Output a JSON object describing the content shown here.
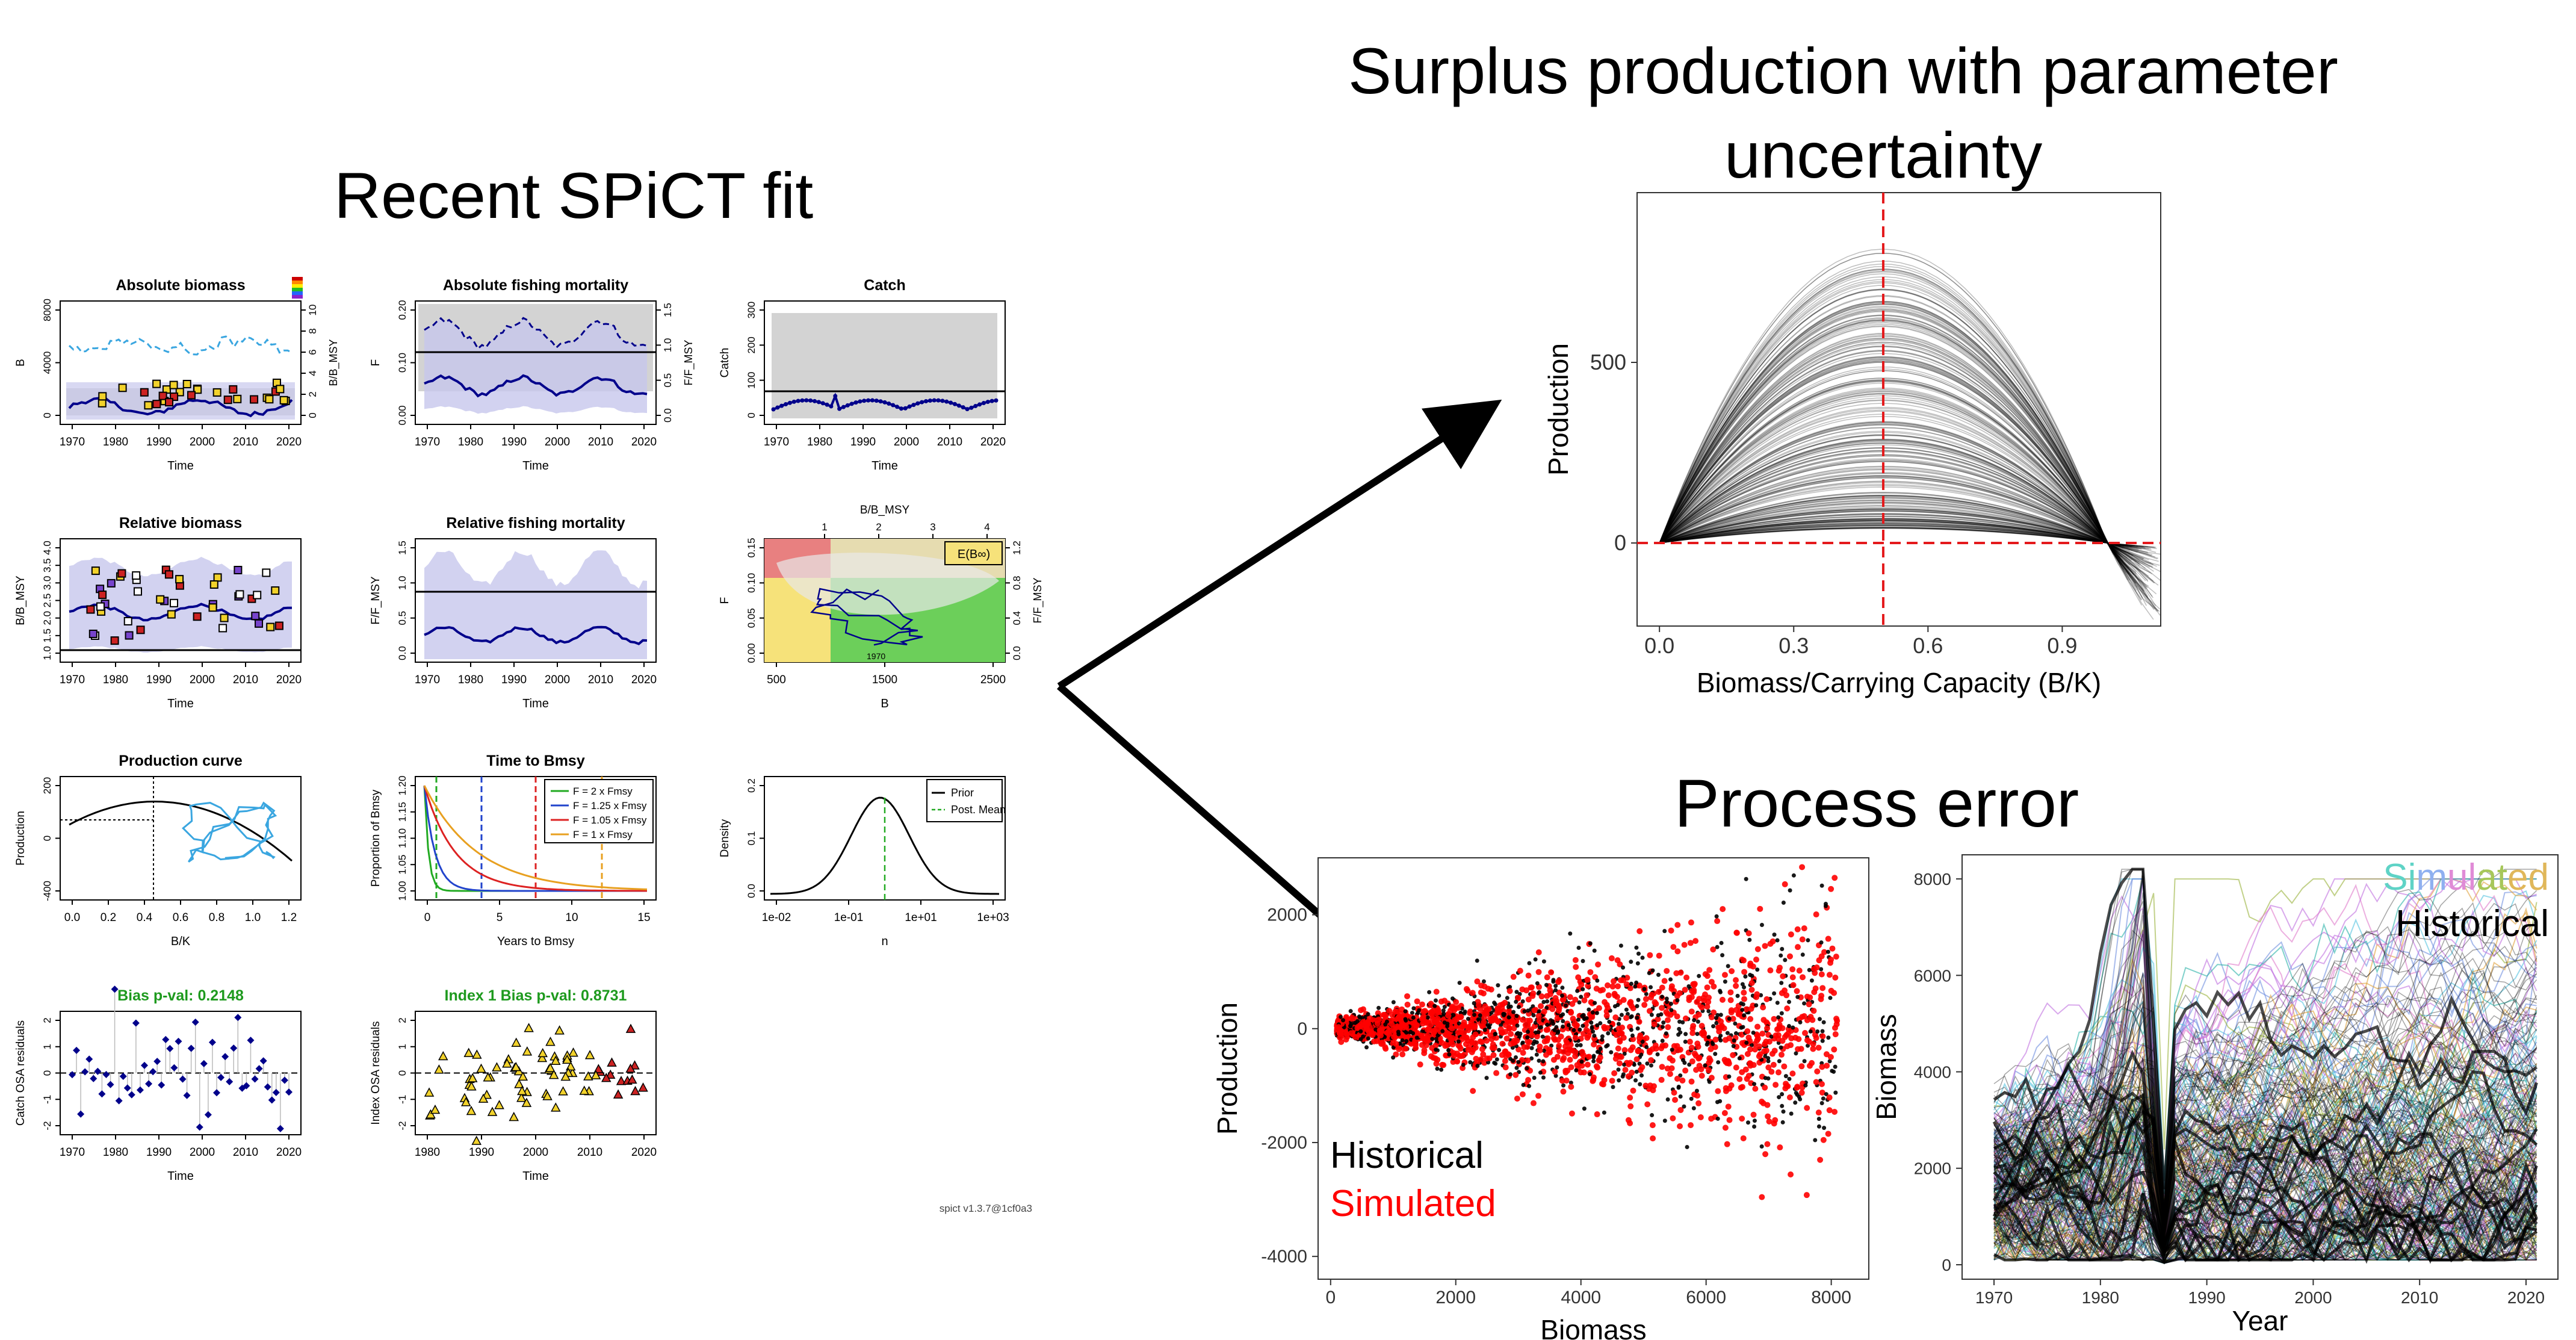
{
  "headings": {
    "left": "Recent SPiCT fit",
    "surplus_line1": "Surplus production with parameter",
    "surplus_line2": "uncertainty",
    "process": "Process error"
  },
  "colors": {
    "historical": "#000000",
    "simulated": "#ff0000",
    "ci_fill": "#c7c7ec",
    "blue": "#00008b",
    "light_blue": "#3aa6e0",
    "green_text": "#1e9a1e",
    "grey_fill": "#d3d3d3",
    "red_dashed": "#e41a1c"
  },
  "spict": {
    "version": "spict v1.3.7@1cf0a3",
    "panels": [
      {
        "title": "Absolute biomass",
        "xlabel": "Time",
        "ylabel": "B",
        "xticks": [
          "1970",
          "1980",
          "1990",
          "2000",
          "2010",
          "2020"
        ],
        "yticks": [
          "0",
          "4000",
          "8000"
        ],
        "y2ticks": [
          "0",
          "2",
          "4",
          "6",
          "8",
          "10"
        ],
        "y2label": "B/B_MSY"
      },
      {
        "title": "Absolute fishing mortality",
        "xlabel": "Time",
        "ylabel": "F",
        "xticks": [
          "1970",
          "1980",
          "1990",
          "2000",
          "2010",
          "2020"
        ],
        "yticks": [
          "0.00",
          "0.10",
          "0.20"
        ],
        "y2ticks": [
          "0.0",
          "0.5",
          "1.0",
          "1.5"
        ],
        "y2label": "F/F_MSY"
      },
      {
        "title": "Catch",
        "xlabel": "Time",
        "ylabel": "Catch",
        "xticks": [
          "1970",
          "1980",
          "1990",
          "2000",
          "2010",
          "2020"
        ],
        "yticks": [
          "0",
          "100",
          "200",
          "300"
        ]
      },
      {
        "title": "Relative biomass",
        "xlabel": "Time",
        "ylabel": "B/B_MSY",
        "xticks": [
          "1970",
          "1980",
          "1990",
          "2000",
          "2010",
          "2020"
        ],
        "yticks": [
          "1.0",
          "1.5",
          "2.0",
          "2.5",
          "3.0",
          "3.5",
          "4.0"
        ]
      },
      {
        "title": "Relative fishing mortality",
        "xlabel": "Time",
        "ylabel": "F/F_MSY",
        "xticks": [
          "1970",
          "1980",
          "1990",
          "2000",
          "2010",
          "2020"
        ],
        "yticks": [
          "0.0",
          "0.5",
          "1.0",
          "1.5"
        ]
      },
      {
        "title": "",
        "xlabel": "B",
        "ylabel": "F",
        "toplabel": "B/B_MSY",
        "xticks": [
          "500",
          "1500",
          "2500"
        ],
        "yticks": [
          "0.00",
          "0.05",
          "0.10",
          "0.15"
        ],
        "topticks": [
          "1",
          "2",
          "3",
          "4"
        ],
        "y2ticks": [
          "0.0",
          "0.4",
          "0.8",
          "1.2"
        ],
        "y2label": "F/F_MSY",
        "legend": "E(B∞)",
        "start_year": "1970"
      },
      {
        "title": "Production curve",
        "xlabel": "B/K",
        "ylabel": "Production",
        "xticks": [
          "0.0",
          "0.2",
          "0.4",
          "0.6",
          "0.8",
          "1.0",
          "1.2"
        ],
        "yticks": [
          "-400",
          "0",
          "200"
        ]
      },
      {
        "title": "Time to Bmsy",
        "xlabel": "Years to Bmsy",
        "ylabel": "Proportion of Bmsy",
        "xticks": [
          "0",
          "5",
          "10",
          "15"
        ],
        "yticks": [
          "1.00",
          "1.05",
          "1.10",
          "1.15",
          "1.20"
        ],
        "legend": [
          "F = 2 x Fmsy",
          "F = 1.25 x Fmsy",
          "F = 1.05 x Fmsy",
          "F = 1 x Fmsy"
        ]
      },
      {
        "title": "",
        "xlabel": "n",
        "ylabel": "Density",
        "xticks": [
          "1e-02",
          "1e-01",
          "1e+01",
          "1e+03"
        ],
        "yticks": [
          "0.0",
          "0.1",
          "0.2"
        ],
        "legend": [
          "Prior",
          "Post. Mean"
        ]
      },
      {
        "title": "Bias p-val: 0.2148",
        "xlabel": "Time",
        "ylabel": "Catch OSA residuals",
        "xticks": [
          "1970",
          "1980",
          "1990",
          "2000",
          "2010",
          "2020"
        ],
        "yticks": [
          "-2",
          "-1",
          "0",
          "1",
          "2"
        ]
      },
      {
        "title": "Index 1 Bias p-val: 0.8731",
        "xlabel": "Time",
        "ylabel": "Index OSA residuals",
        "xticks": [
          "1980",
          "1990",
          "2000",
          "2010",
          "2020"
        ],
        "yticks": [
          "-2",
          "-1",
          "0",
          "1",
          "2"
        ]
      }
    ]
  },
  "chart_data": [
    {
      "type": "line",
      "title": "Surplus production with parameter uncertainty",
      "xlabel": "Biomass/Carrying Capacity (B/K)",
      "ylabel": "Production",
      "xticks": [
        "0.0",
        "0.3",
        "0.6",
        "0.9"
      ],
      "yticks": [
        "0",
        "500"
      ],
      "xlim": [
        -0.05,
        1.12
      ],
      "ylim": [
        -230,
        970
      ],
      "reference_lines": {
        "vertical_x": 0.5,
        "horizontal_y": 0
      },
      "curve_family": {
        "count_shown": "many",
        "peak_x": 0.5,
        "peak_range": [
          40,
          820
        ],
        "end_x": 1.1
      }
    },
    {
      "type": "scatter",
      "title": "Process error",
      "xlabel": "Biomass",
      "ylabel": "Production",
      "xticks": [
        "0",
        "2000",
        "4000",
        "6000",
        "8000"
      ],
      "yticks": [
        "-4000",
        "-2000",
        "0",
        "2000"
      ],
      "xlim": [
        -200,
        8600
      ],
      "ylim": [
        -4400,
        3000
      ],
      "series": [
        {
          "name": "Historical",
          "color": "#000000"
        },
        {
          "name": "Simulated",
          "color": "#ff0000"
        }
      ]
    },
    {
      "type": "line",
      "xlabel": "Year",
      "ylabel": "Biomass",
      "xticks": [
        "1970",
        "1980",
        "1990",
        "2000",
        "2010",
        "2020"
      ],
      "yticks": [
        "0",
        "2000",
        "4000",
        "6000",
        "8000"
      ],
      "xlim": [
        1967,
        2023
      ],
      "ylim": [
        -300,
        8500
      ],
      "series": [
        {
          "name": "Simulated",
          "color": "multicolor"
        },
        {
          "name": "Historical",
          "color": "#000000"
        }
      ]
    }
  ]
}
